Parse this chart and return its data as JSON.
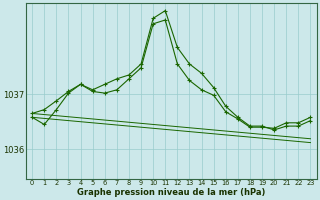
{
  "background_color": "#cce8ea",
  "grid_color": "#99cccc",
  "line_color": "#1a6600",
  "x_labels": [
    "0",
    "1",
    "2",
    "3",
    "4",
    "5",
    "6",
    "7",
    "8",
    "9",
    "10",
    "11",
    "12",
    "13",
    "14",
    "15",
    "16",
    "17",
    "18",
    "19",
    "20",
    "21",
    "22",
    "23"
  ],
  "y_ticks": [
    1036,
    1037
  ],
  "ylim": [
    1035.45,
    1038.65
  ],
  "xlabel": "Graphe pression niveau de la mer (hPa)",
  "series1": [
    1036.65,
    1036.72,
    1036.88,
    1037.05,
    1037.18,
    1037.08,
    1037.18,
    1037.28,
    1037.35,
    1037.55,
    1038.38,
    1038.52,
    1037.85,
    1037.55,
    1037.38,
    1037.12,
    1036.78,
    1036.58,
    1036.42,
    1036.42,
    1036.35,
    1036.42,
    1036.42,
    1036.52
  ],
  "series2": [
    1036.58,
    1036.45,
    1036.72,
    1037.02,
    1037.18,
    1037.05,
    1037.02,
    1037.08,
    1037.28,
    1037.48,
    1038.28,
    1038.35,
    1037.55,
    1037.25,
    1037.08,
    1036.98,
    1036.68,
    1036.55,
    1036.4,
    1036.4,
    1036.38,
    1036.48,
    1036.48,
    1036.58
  ],
  "series3_linear": [
    1036.65,
    1036.63,
    1036.61,
    1036.59,
    1036.57,
    1036.55,
    1036.53,
    1036.51,
    1036.49,
    1036.47,
    1036.45,
    1036.43,
    1036.41,
    1036.39,
    1036.37,
    1036.35,
    1036.33,
    1036.31,
    1036.29,
    1036.27,
    1036.25,
    1036.23,
    1036.21,
    1036.19
  ],
  "series4_linear": [
    1036.58,
    1036.56,
    1036.54,
    1036.52,
    1036.5,
    1036.48,
    1036.46,
    1036.44,
    1036.42,
    1036.4,
    1036.38,
    1036.36,
    1036.34,
    1036.32,
    1036.3,
    1036.28,
    1036.26,
    1036.24,
    1036.22,
    1036.2,
    1036.18,
    1036.16,
    1036.14,
    1036.12
  ]
}
